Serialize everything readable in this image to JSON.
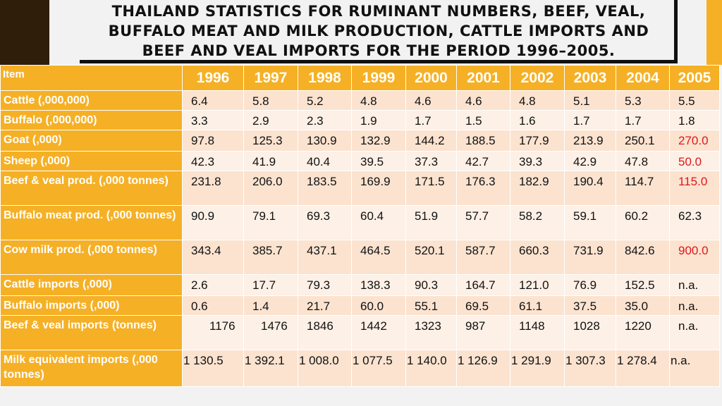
{
  "title": "THAILAND STATISTICS FOR RUMINANT NUMBERS, BEEF, VEAL, BUFFALO MEAT AND MILK PRODUCTION, CATTLE IMPORTS AND BEEF AND VEAL IMPORTS FOR THE PERIOD 1996–2005.",
  "header": [
    "Item",
    "1996",
    "1997",
    "1998",
    "1999",
    "2000",
    "2001",
    "2002",
    "2003",
    "2004",
    "2005"
  ],
  "rows": [
    {
      "label": "Cattle (,000,000)",
      "values": [
        "6.4",
        "5.8",
        "5.2",
        "4.8",
        "4.6",
        "4.6",
        "4.8",
        "5.1",
        "5.3",
        "5.5"
      ]
    },
    {
      "label": "Buffalo (,000,000)",
      "values": [
        "3.3",
        "2.9",
        "2.3",
        "1.9",
        "1.7",
        "1.5",
        "1.6",
        "1.7",
        "1.7",
        "1.8"
      ]
    },
    {
      "label": "Goat (,000)",
      "values": [
        "97.8",
        "125.3",
        "130.9",
        "132.9",
        "144.2",
        "188.5",
        "177.9",
        "213.9",
        "250.1",
        "270.0"
      ]
    },
    {
      "label": "Sheep (,000)",
      "values": [
        "42.3",
        "41.9",
        "40.4",
        "39.5",
        "37.3",
        "42.7",
        "39.3",
        "42.9",
        "47.8",
        "50.0"
      ]
    },
    {
      "label": "Beef & veal prod. (,000 tonnes)",
      "values": [
        "231.8",
        "206.0",
        "183.5",
        "169.9",
        "171.5",
        "176.3",
        "182.9",
        "190.4",
        "114.7",
        "115.0"
      ]
    },
    {
      "label": "Buffalo meat prod. (,000 tonnes)",
      "values": [
        "90.9",
        "79.1",
        "69.3",
        "60.4",
        "51.9",
        "57.7",
        "58.2",
        "59.1",
        "60.2",
        "62.3"
      ]
    },
    {
      "label": "Cow milk prod. (,000 tonnes)",
      "values": [
        "343.4",
        "385.7",
        "437.1",
        "464.5",
        "520.1",
        "587.7",
        "660.3",
        "731.9",
        "842.6",
        "900.0"
      ]
    },
    {
      "label": "Cattle imports (,000)",
      "values": [
        "2.6",
        "17.7",
        "79.3",
        "138.3",
        "90.3",
        "164.7",
        "121.0",
        "76.9",
        "152.5",
        "n.a."
      ]
    },
    {
      "label": "Buffalo imports (,000)",
      "values": [
        "0.6",
        "1.4",
        "21.7",
        "60.0",
        "55.1",
        "69.5",
        "61.1",
        "37.5",
        "35.0",
        "n.a."
      ]
    },
    {
      "label": "Beef & veal imports (tonnes)",
      "values": [
        "1176",
        "1476",
        "1846",
        "1442",
        "1323",
        "987",
        "1148",
        "1028",
        "1220",
        "n.a."
      ]
    },
    {
      "label": "Milk equivalent imports (,000 tonnes)",
      "values": [
        "1 130.5",
        "1 392.1",
        "1 008.0",
        "1 077.5",
        "1 140.0",
        "1 126.9",
        "1 291.9",
        "1 307.3",
        "1 278.4",
        "n.a."
      ]
    }
  ],
  "highlight_color": "#e0161c",
  "red_cells": [
    [
      2,
      9
    ],
    [
      3,
      9
    ],
    [
      4,
      9
    ],
    [
      6,
      9
    ]
  ]
}
